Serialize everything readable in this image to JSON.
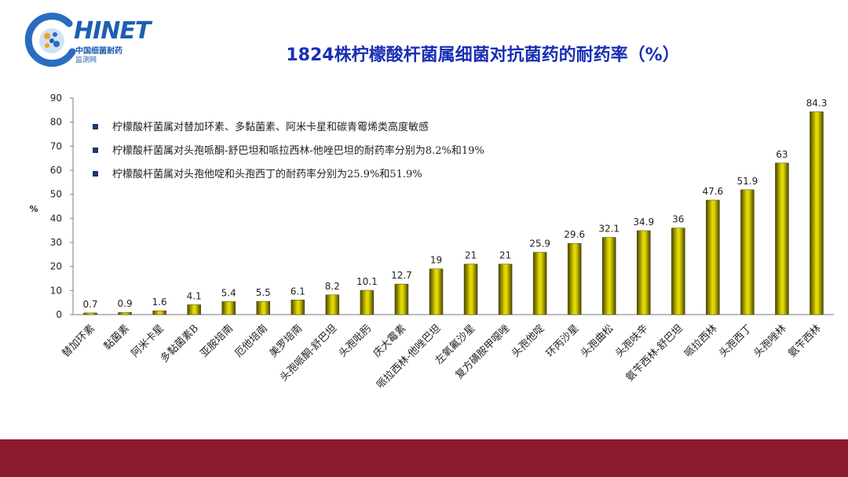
{
  "logo": {
    "text": "HINET",
    "sub1": "中国细菌耐药",
    "sub2": "监测网"
  },
  "title": "1824株柠檬酸杆菌属细菌对抗菌药的耐药率（%）",
  "notes": [
    "柠檬酸杆菌属对替加环素、多黏菌素、阿米卡星和碳青霉烯类高度敏感",
    "柠檬酸杆菌属对头孢哌酮-舒巴坦和哌拉西林-他唑巴坦的耐药率分别为8.2%和19%",
    "柠檬酸杆菌属对头孢他啶和头孢西丁的耐药率分别为25.9%和51.9%"
  ],
  "chart_data": {
    "type": "bar",
    "ylabel": "%",
    "ylim": [
      0,
      90
    ],
    "yticks": [
      0,
      10,
      20,
      30,
      40,
      50,
      60,
      70,
      80,
      90
    ],
    "categories": [
      "替加环素",
      "黏菌素",
      "阿米卡星",
      "多黏菌素B",
      "亚胺培南",
      "厄他培南",
      "美罗培南",
      "头孢哌酮-舒巴坦",
      "头孢吡肟",
      "庆大霉素",
      "哌拉西林-他唑巴坦",
      "左氧氟沙星",
      "复方磺胺甲噁唑",
      "头孢他啶",
      "环丙沙星",
      "头孢曲松",
      "头孢呋辛",
      "氨苄西林-舒巴坦",
      "哌拉西林",
      "头孢西丁",
      "头孢唑林",
      "氨苄西林"
    ],
    "values": [
      0.7,
      0.9,
      1.6,
      4.1,
      5.4,
      5.5,
      6.1,
      8.2,
      10.1,
      12.7,
      19,
      21,
      21,
      25.9,
      29.6,
      32.1,
      34.9,
      36,
      47.6,
      51.9,
      63,
      84.3
    ],
    "bar_color": "#e0d800",
    "bar_dark_color": "#4a4500",
    "grid": false,
    "legend": "none"
  },
  "colors": {
    "title": "#1a2fb5",
    "band": "#8b1a2c",
    "axis": "#7a7a7a",
    "text": "#222222"
  }
}
